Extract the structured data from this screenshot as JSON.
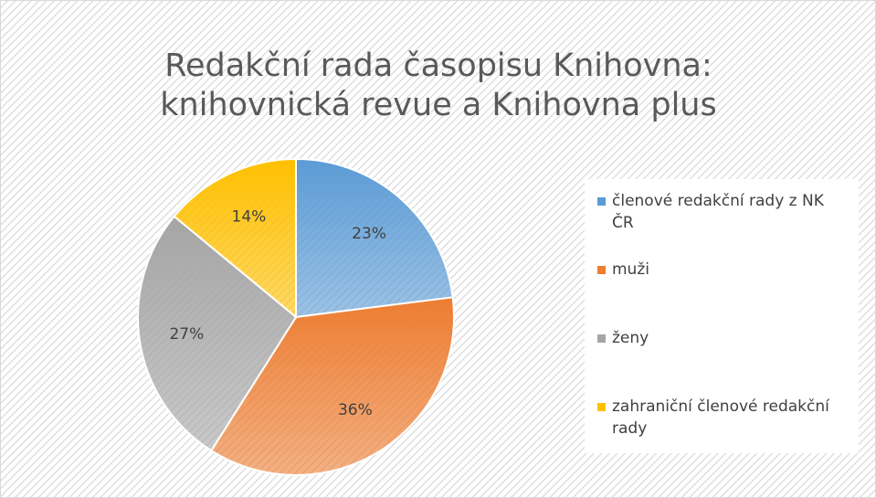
{
  "chart_data": {
    "type": "pie",
    "title": [
      "Redakční rada časopisu Knihovna:",
      "knihovnická revue a Knihovna plus"
    ],
    "categories": [
      "členové redakční rady z NK ČR",
      "muži",
      "ženy",
      "zahraniční členové redakční rady"
    ],
    "values": [
      23,
      36,
      27,
      14
    ],
    "value_labels": [
      "23%",
      "36%",
      "27%",
      "14%"
    ],
    "colors": [
      "#5b9bd5",
      "#ed7d31",
      "#a5a5a5",
      "#ffc000"
    ],
    "legend": "right"
  }
}
